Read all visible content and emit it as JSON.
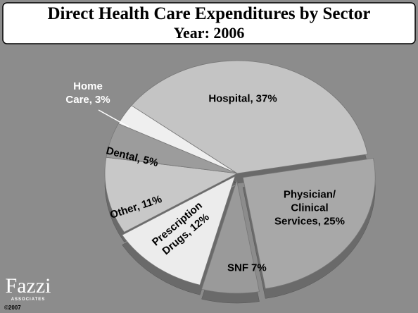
{
  "chart_data": {
    "type": "pie",
    "title": "Direct Health Care Expenditures by Sector",
    "subtitle": "Year: 2006",
    "categories": [
      "Hospital,",
      "Physician/ Clinical Services,",
      "SNF",
      "Prescription Drugs,",
      "Other,",
      "Dental,",
      "Home Care,"
    ],
    "values": [
      37,
      25,
      7,
      12,
      11,
      5,
      3
    ],
    "value_labels": [
      "37%",
      "25%",
      "7%",
      "12%",
      "11%",
      "5%",
      "3%"
    ],
    "colors": [
      "#c4c4c4",
      "#a8a8a8",
      "#9a9a9a",
      "#ececec",
      "#c8c8c8",
      "#9c9c9c",
      "#efefef"
    ]
  },
  "logo": {
    "name": "Fazzi",
    "tagline": "ASSOCIATES",
    "copyright": "©2007"
  }
}
